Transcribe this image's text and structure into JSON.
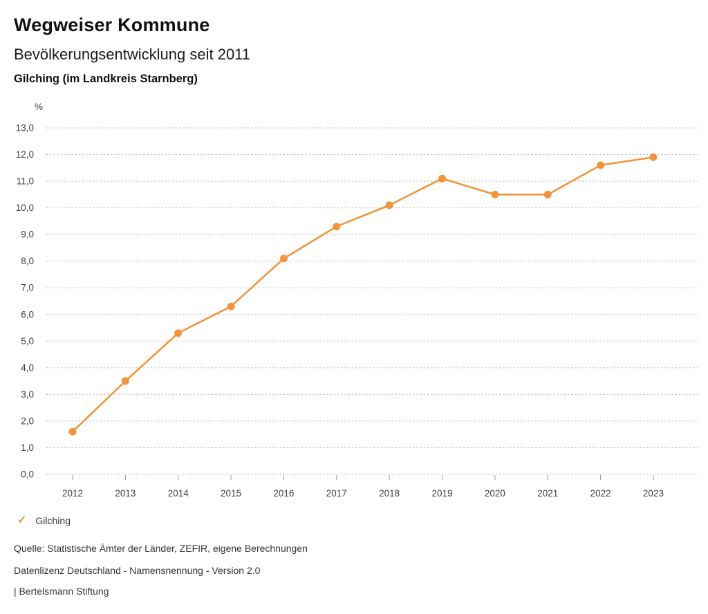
{
  "header": {
    "title": "Wegweiser Kommune",
    "subtitle": "Bevölkerungsentwicklung seit 2011",
    "location": "Gilching (im Landkreis Starnberg)"
  },
  "chart_data": {
    "type": "line",
    "title": "Bevölkerungsentwicklung seit 2011",
    "unit_label": "%",
    "x": [
      2012,
      2013,
      2014,
      2015,
      2016,
      2017,
      2018,
      2019,
      2020,
      2021,
      2022,
      2023
    ],
    "series": [
      {
        "name": "Gilching",
        "color": "#F0953D",
        "values": [
          1.6,
          3.5,
          5.3,
          6.3,
          8.1,
          9.3,
          10.1,
          11.1,
          10.5,
          10.5,
          11.6,
          11.9
        ]
      }
    ],
    "ylim": [
      0.0,
      13.0
    ],
    "ytick_step": 1.0,
    "ytick_decimals": 1,
    "decimal_separator": ",",
    "grid": "horizontal-dotted",
    "legend_position": "bottom-left"
  },
  "legend": {
    "check_icon": "✓",
    "label": "Gilching"
  },
  "footer": {
    "source": "Quelle: Statistische Ämter der Länder, ZEFIR, eigene Berechnungen",
    "license": "Datenlizenz Deutschland - Namensnennung - Version 2.0",
    "attribution": "| Bertelsmann Stiftung"
  },
  "colors": {
    "series_orange": "#F0953D",
    "gridline": "#b5b5b5",
    "axis_text": "#3d3d3d",
    "tick": "#999999",
    "title_text": "#111111"
  }
}
